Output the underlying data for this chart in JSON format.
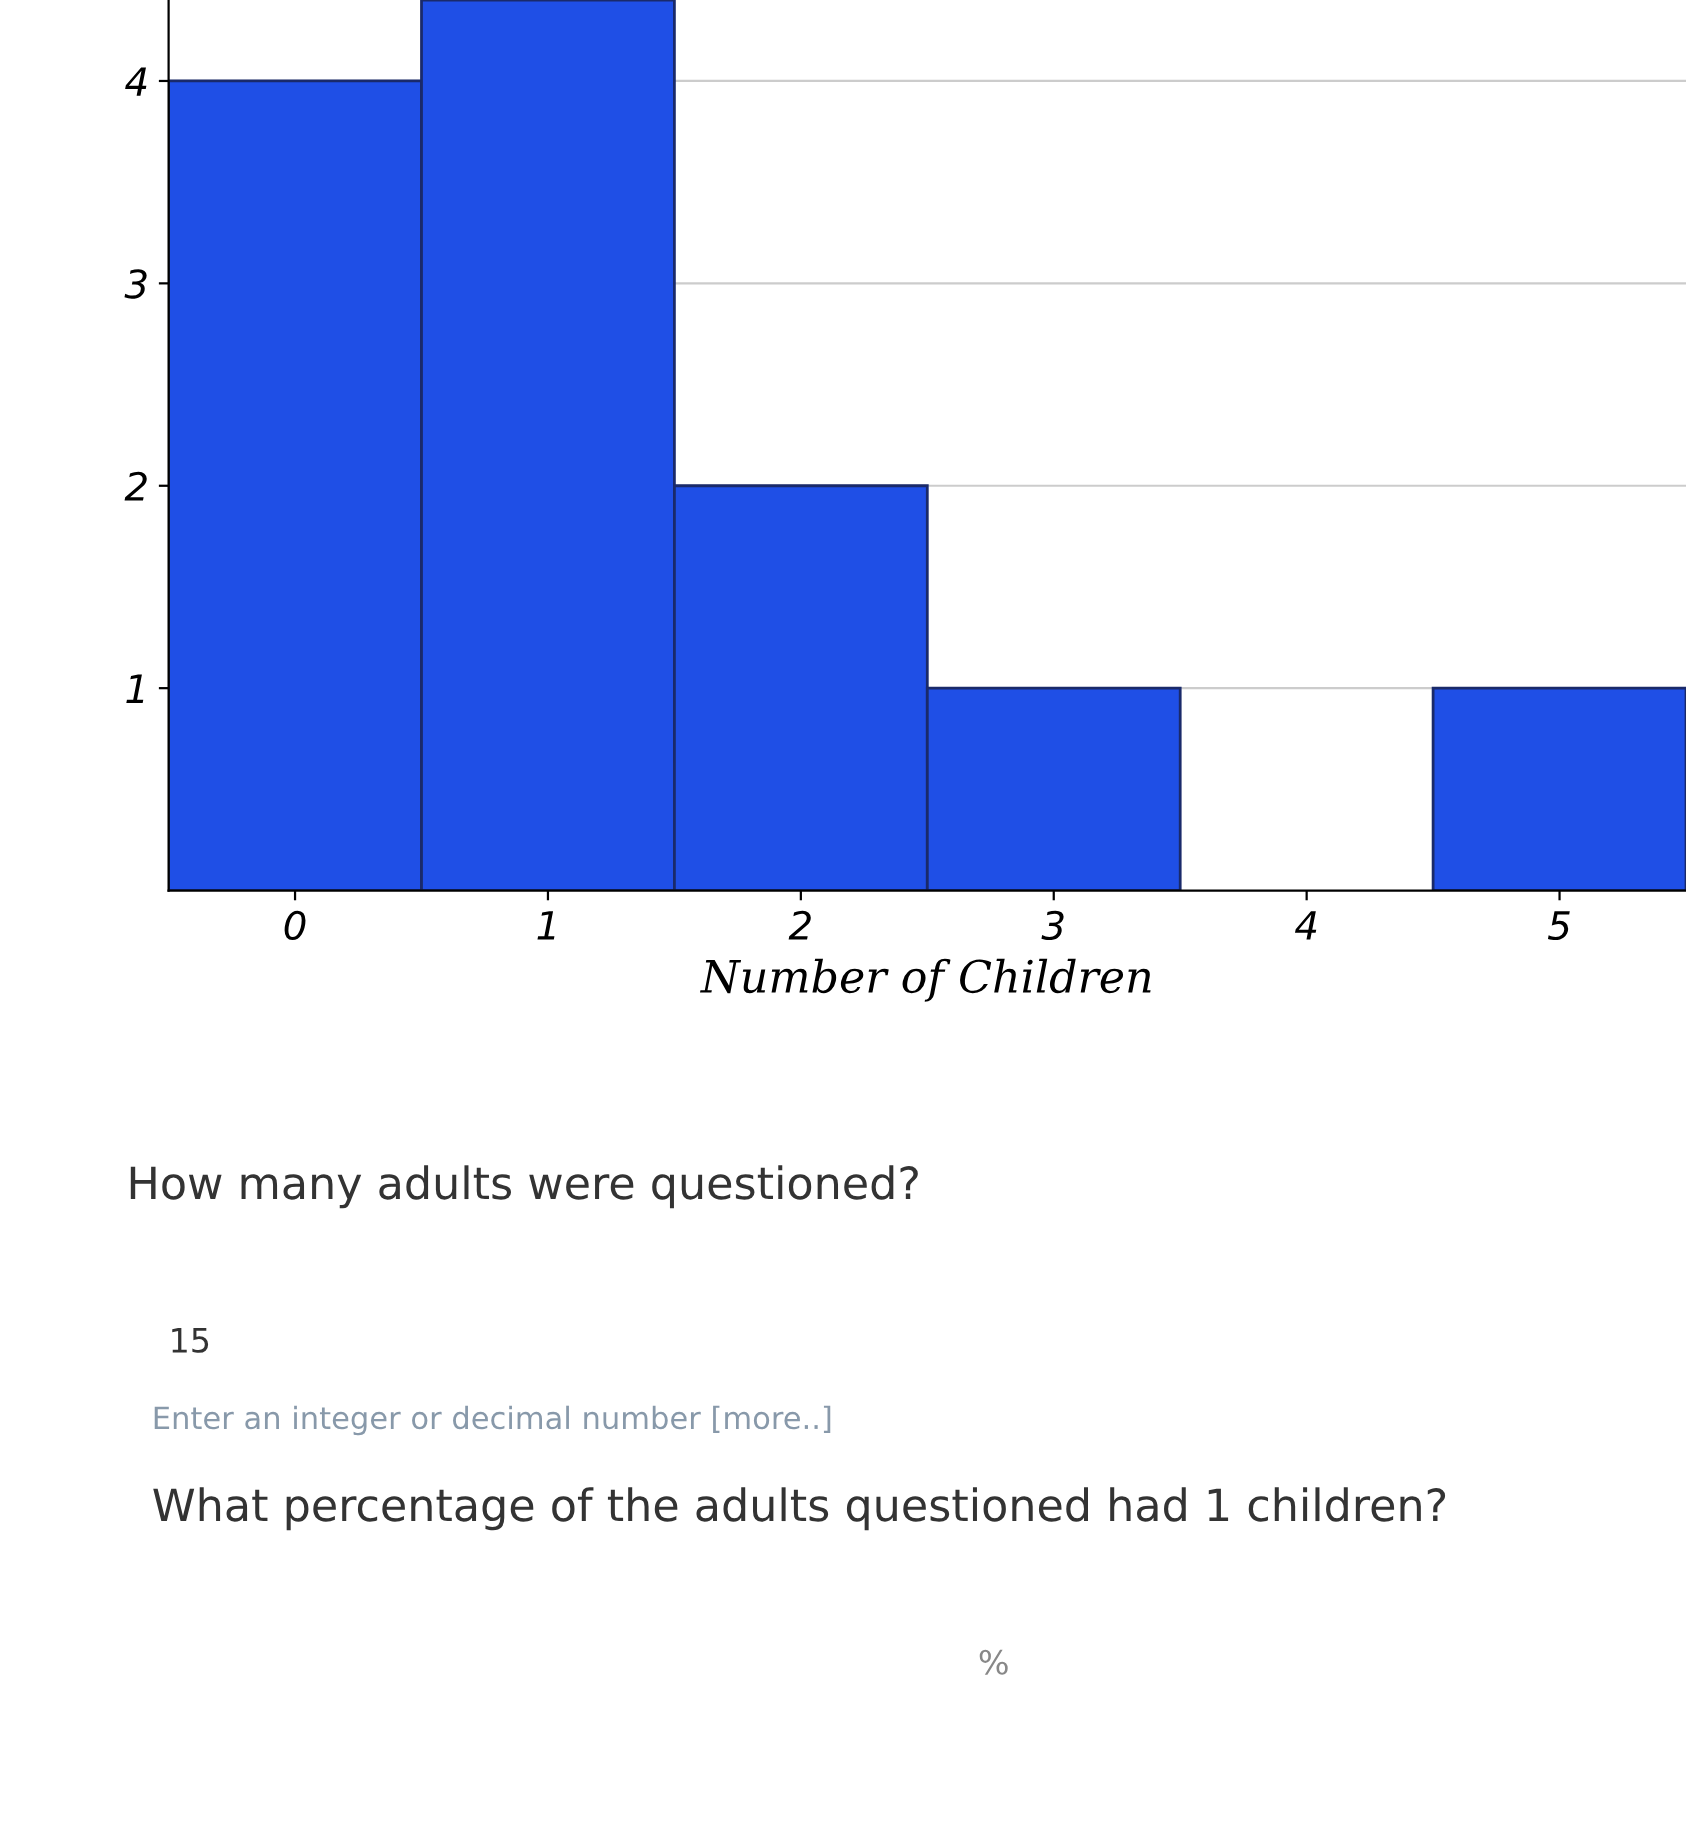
{
  "chart_data": {
    "type": "bar",
    "xlabel": "Number of Children",
    "categories": [
      "0",
      "1",
      "2",
      "3",
      "4",
      "5"
    ],
    "values": [
      4,
      4.4,
      2,
      1,
      0,
      1
    ],
    "color": "#1f4fe6",
    "ylim": [
      0,
      4.4
    ],
    "yticks": [
      1,
      2,
      3,
      4
    ],
    "grid": "y",
    "annotations": [
      "How many adults were questioned?",
      "15",
      "Enter an integer or decimal number [more..]",
      "What percentage of the adults questioned had 1 children?",
      "%"
    ]
  }
}
